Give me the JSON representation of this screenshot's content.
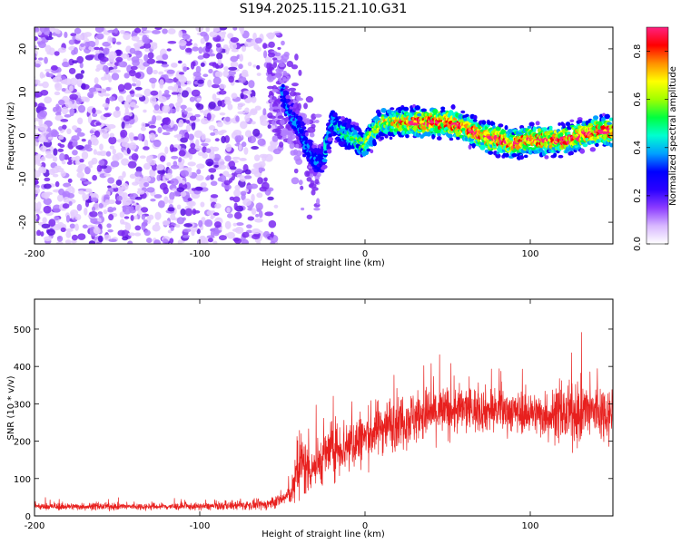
{
  "title": "S194.2025.115.21.10.G31",
  "chart_data": [
    {
      "type": "heatmap",
      "xlabel": "Height of straight line (km)",
      "ylabel": "Frequency (Hz)",
      "xlim": [
        -200,
        150
      ],
      "ylim": [
        -25,
        25
      ],
      "xticks": [
        -200,
        -100,
        0,
        100
      ],
      "yticks": [
        -20,
        -10,
        0,
        10,
        20
      ],
      "colorbar": {
        "label": "Normalized spectral amplitude",
        "range": [
          0,
          0.9
        ],
        "ticks": [
          "0.0",
          "0.2",
          "0.4",
          "0.6",
          "0.8"
        ],
        "colors": [
          "#ffffff",
          "#d8b8ff",
          "#8c3cff",
          "#2a00ff",
          "#0000ff",
          "#00a0ff",
          "#00ffd0",
          "#00ff40",
          "#a0ff00",
          "#ffff00",
          "#ff9000",
          "#ff0000",
          "#ff2080"
        ]
      },
      "signal_track": {
        "x": [
          -50,
          -45,
          -40,
          -35,
          -30,
          -25,
          -20,
          -15,
          -10,
          -5,
          0,
          5,
          10,
          20,
          30,
          40,
          50,
          60,
          70,
          80,
          90,
          100,
          110,
          120,
          130,
          140,
          150
        ],
        "freq": [
          10,
          5,
          2,
          -3,
          -6,
          -5,
          3,
          1,
          0,
          -1,
          -2,
          1,
          3,
          3,
          3,
          3,
          3,
          2,
          0,
          -1,
          -2,
          -1,
          -1,
          -1,
          0,
          1,
          1
        ]
      },
      "noise_region": {
        "x_from": -200,
        "x_to": -55,
        "freq_range": [
          -25,
          25
        ]
      }
    },
    {
      "type": "line",
      "xlabel": "Height of straight line (km)",
      "ylabel": "SNR (10 * v/v)",
      "xlim": [
        -200,
        150
      ],
      "ylim": [
        0,
        580
      ],
      "xticks": [
        -200,
        -100,
        0,
        100
      ],
      "yticks": [
        0,
        100,
        200,
        300,
        400,
        500
      ],
      "line_color": "#e8201e",
      "envelope": {
        "x": [
          -200,
          -150,
          -100,
          -60,
          -50,
          -45,
          -42,
          -40,
          -35,
          -30,
          -20,
          -10,
          0,
          10,
          20,
          30,
          40,
          50,
          60,
          70,
          80,
          90,
          100,
          110,
          120,
          130,
          140,
          150
        ],
        "mean": [
          25,
          25,
          25,
          30,
          45,
          60,
          90,
          140,
          130,
          135,
          180,
          190,
          210,
          240,
          255,
          265,
          275,
          280,
          285,
          285,
          282,
          280,
          275,
          270,
          270,
          275,
          280,
          275
        ],
        "spread": [
          10,
          10,
          10,
          15,
          20,
          30,
          70,
          120,
          80,
          70,
          80,
          90,
          80,
          80,
          80,
          80,
          80,
          75,
          70,
          65,
          65,
          60,
          60,
          70,
          80,
          90,
          90,
          80
        ]
      }
    }
  ]
}
